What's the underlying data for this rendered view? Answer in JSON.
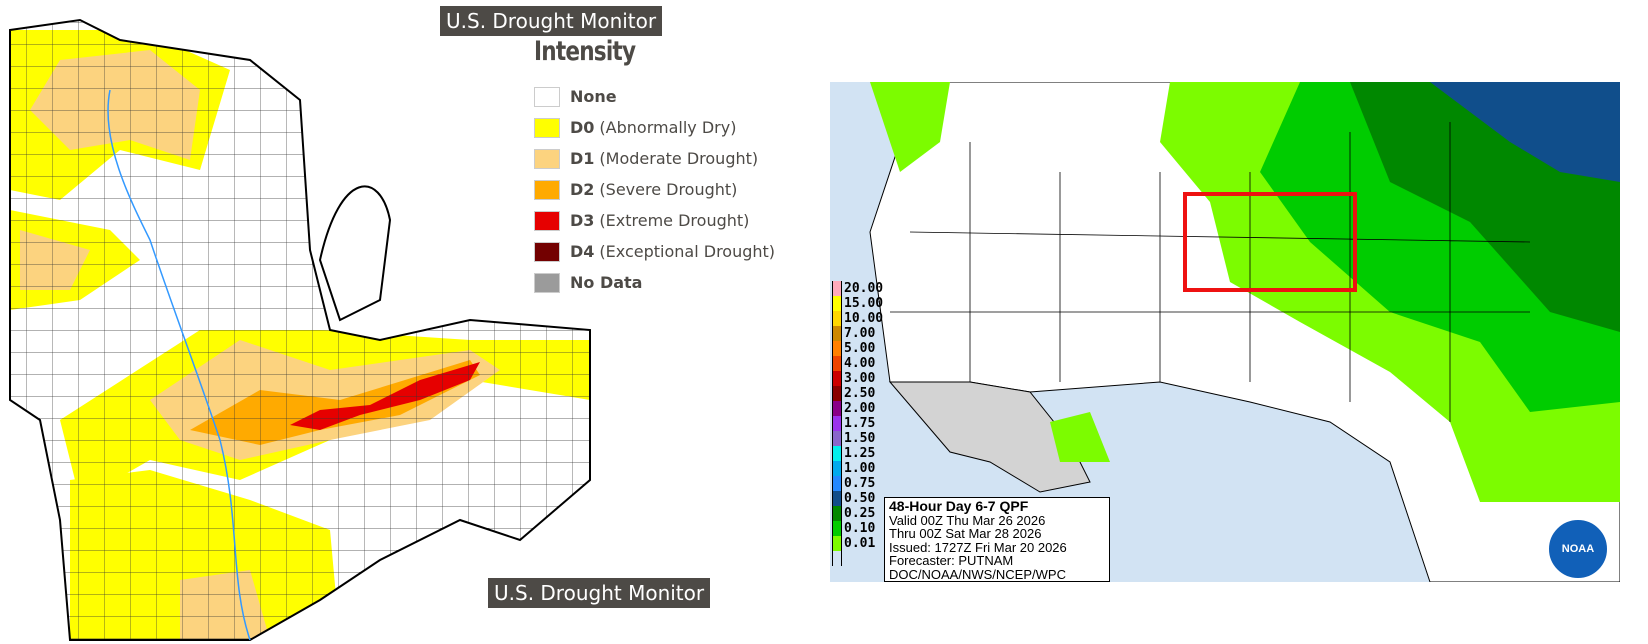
{
  "drought_monitor": {
    "title_top": "U.S. Drought Monitor",
    "title_bottom": "U.S. Drought Monitor",
    "legend_title": "Intensity",
    "legend": [
      {
        "code": "",
        "label": "None",
        "color": "#ffffff"
      },
      {
        "code": "D0",
        "label": "(Abnormally Dry)",
        "color": "#ffff00"
      },
      {
        "code": "D1",
        "label": "(Moderate Drought)",
        "color": "#fcd37f"
      },
      {
        "code": "D2",
        "label": "(Severe Drought)",
        "color": "#ffaa00"
      },
      {
        "code": "D3",
        "label": "(Extreme Drought)",
        "color": "#e60000"
      },
      {
        "code": "D4",
        "label": "(Exceptional Drought)",
        "color": "#730000"
      },
      {
        "code": "",
        "label": "No Data",
        "color": "#9b9b9b"
      }
    ]
  },
  "qpf": {
    "legend": [
      {
        "value": "20.00",
        "color": "#ffaabb"
      },
      {
        "value": "15.00",
        "color": "#ffff00"
      },
      {
        "value": "10.00",
        "color": "#ffd700"
      },
      {
        "value": "7.00",
        "color": "#cc8800"
      },
      {
        "value": "5.00",
        "color": "#ff8000"
      },
      {
        "value": "4.00",
        "color": "#ee4400"
      },
      {
        "value": "3.00",
        "color": "#cc0000"
      },
      {
        "value": "2.50",
        "color": "#880000"
      },
      {
        "value": "2.00",
        "color": "#880088"
      },
      {
        "value": "1.75",
        "color": "#9933ee"
      },
      {
        "value": "1.50",
        "color": "#8866cc"
      },
      {
        "value": "1.25",
        "color": "#00eeee"
      },
      {
        "value": "1.00",
        "color": "#00aaee"
      },
      {
        "value": "0.75",
        "color": "#2288ff"
      },
      {
        "value": "0.50",
        "color": "#104e8b"
      },
      {
        "value": "0.25",
        "color": "#008800"
      },
      {
        "value": "0.10",
        "color": "#00cc00"
      },
      {
        "value": "0.01",
        "color": "#7cfc00"
      },
      {
        "value": "",
        "color": "#d2e3f3"
      }
    ],
    "info": {
      "title": "48-Hour Day 6-7 QPF",
      "valid": "Valid 00Z Thu Mar 26 2026",
      "thru": "Thru 00Z Sat Mar 28 2026",
      "issued": "Issued: 1727Z Fri Mar 20 2026",
      "forecaster": "Forecaster: PUTNAM",
      "source": "DOC/NOAA/NWS/NCEP/WPC"
    },
    "logo_text": "NOAA"
  }
}
